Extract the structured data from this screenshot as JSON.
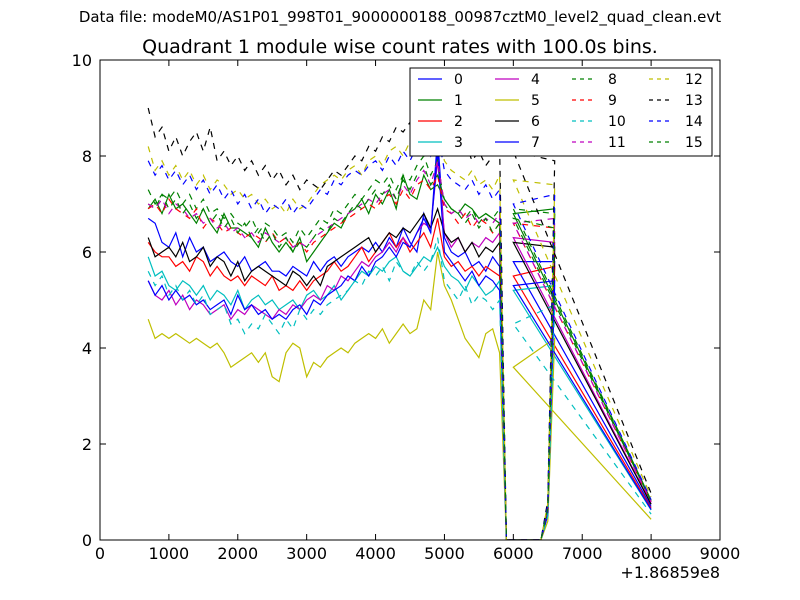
{
  "suptitle": "Data file: modeM0/AS1P01_998T01_9000000188_00987cztM0_level2_quad_clean.evt",
  "chart_data": {
    "type": "line",
    "title": "Quadrant 1 module wise count rates with 100.0s bins.",
    "xlabel": "",
    "ylabel": "",
    "x_offset_label": "+1.86859e8",
    "xlim": [
      0,
      9000
    ],
    "ylim": [
      0,
      10
    ],
    "xticks": [
      0,
      1000,
      2000,
      3000,
      4000,
      5000,
      6000,
      7000,
      8000,
      9000
    ],
    "yticks": [
      0,
      2,
      4,
      6,
      8,
      10
    ],
    "legend_position": "top-right",
    "legend_columns": 4,
    "x_start": 700,
    "x_step": 100,
    "gap_segment": {
      "x": [
        5800,
        5900,
        6000,
        6100,
        6200,
        6300,
        6400,
        6500,
        6600
      ],
      "fraction_of_level": [
        1.0,
        0.0,
        0.0,
        0.0,
        0.0,
        0.0,
        0.0,
        0.1,
        1.0
      ]
    },
    "final_point": {
      "x": 8000,
      "fraction_of_level": 0.12
    },
    "series": [
      {
        "name": "0",
        "color": "#0000ff",
        "dash": "solid",
        "values": [
          6.7,
          6.6,
          6.2,
          6.1,
          6.4,
          5.9,
          6.3,
          6.0,
          6.1,
          5.8,
          5.9,
          6.0,
          5.8,
          5.7,
          5.9,
          5.6,
          5.7,
          5.8,
          5.6,
          5.6,
          5.5,
          5.7,
          5.6,
          5.5,
          5.8,
          5.6,
          5.8,
          5.9,
          5.7,
          5.9,
          6.0,
          6.1,
          6.0,
          6.2,
          6.0,
          6.3,
          6.1,
          6.5,
          6.2,
          6.0,
          6.8,
          6.4,
          8.4,
          6.3,
          6.0,
          5.9,
          6.0,
          5.7,
          5.8,
          5.6,
          5.9,
          5.7,
          5.8,
          5.8
        ]
      },
      {
        "name": "1",
        "color": "#008000",
        "dash": "solid",
        "values": [
          6.9,
          7.1,
          6.8,
          7.2,
          6.9,
          7.0,
          6.8,
          6.6,
          6.9,
          6.6,
          6.4,
          6.8,
          6.5,
          6.5,
          6.4,
          6.3,
          6.1,
          6.5,
          6.2,
          6.0,
          6.2,
          6.0,
          6.3,
          5.8,
          6.0,
          6.2,
          6.4,
          6.6,
          6.5,
          6.8,
          6.9,
          7.1,
          6.8,
          7.2,
          7.0,
          7.3,
          6.9,
          7.6,
          7.2,
          7.1,
          7.6,
          7.3,
          7.4,
          7.1,
          6.9,
          6.8,
          7.0,
          6.9,
          6.7,
          6.8,
          6.7,
          6.6,
          6.9,
          6.8
        ]
      },
      {
        "name": "2",
        "color": "#ff0000",
        "dash": "solid",
        "values": [
          6.2,
          6.0,
          5.9,
          5.9,
          5.7,
          5.8,
          5.6,
          5.9,
          5.8,
          5.5,
          5.7,
          5.5,
          5.4,
          5.5,
          5.3,
          5.5,
          5.4,
          5.3,
          5.5,
          5.2,
          5.3,
          5.2,
          5.4,
          5.2,
          5.4,
          5.5,
          5.6,
          5.8,
          5.6,
          5.7,
          5.9,
          6.1,
          5.8,
          6.0,
          6.2,
          6.4,
          6.1,
          6.3,
          6.0,
          6.2,
          6.4,
          6.1,
          6.7,
          5.9,
          5.7,
          5.8,
          5.6,
          5.7,
          5.5,
          5.7,
          5.6,
          5.5,
          5.7,
          5.5
        ]
      },
      {
        "name": "3",
        "color": "#00bfbf",
        "dash": "solid",
        "values": [
          5.9,
          5.5,
          5.6,
          5.3,
          5.2,
          5.4,
          5.3,
          5.1,
          5.3,
          5.0,
          5.2,
          5.1,
          4.9,
          5.2,
          4.8,
          5.0,
          5.1,
          4.9,
          5.0,
          4.8,
          4.9,
          5.0,
          4.8,
          5.1,
          5.2,
          5.0,
          5.1,
          5.3,
          5.0,
          5.2,
          5.4,
          5.6,
          5.5,
          5.7,
          5.6,
          5.8,
          5.9,
          5.6,
          5.5,
          5.7,
          5.9,
          5.8,
          6.1,
          5.7,
          5.5,
          5.4,
          5.2,
          5.5,
          5.3,
          5.1,
          5.2,
          5.4,
          5.3,
          5.2
        ]
      },
      {
        "name": "4",
        "color": "#bf00bf",
        "dash": "solid",
        "values": [
          5.4,
          5.1,
          5.0,
          5.2,
          4.9,
          5.1,
          4.8,
          5.0,
          4.9,
          4.7,
          4.8,
          4.9,
          4.6,
          4.8,
          4.7,
          4.9,
          4.8,
          4.7,
          4.6,
          4.8,
          4.7,
          4.9,
          4.8,
          5.0,
          5.1,
          5.0,
          5.3,
          5.2,
          5.5,
          5.4,
          5.6,
          5.8,
          5.7,
          5.9,
          6.0,
          6.2,
          6.0,
          6.3,
          6.1,
          6.4,
          6.6,
          6.5,
          7.9,
          6.4,
          6.1,
          6.3,
          6.0,
          6.2,
          6.1,
          6.3,
          6.2,
          6.4,
          6.2,
          6.3
        ]
      },
      {
        "name": "5",
        "color": "#bfbf00",
        "dash": "solid",
        "values": [
          4.6,
          4.2,
          4.3,
          4.2,
          4.3,
          4.2,
          4.1,
          4.2,
          4.1,
          4.0,
          4.1,
          3.9,
          3.6,
          3.7,
          3.8,
          3.9,
          3.7,
          3.9,
          3.4,
          3.3,
          3.9,
          4.1,
          4.0,
          3.4,
          3.7,
          3.6,
          3.8,
          3.9,
          4.0,
          3.9,
          4.1,
          4.2,
          4.3,
          4.2,
          4.4,
          4.1,
          4.3,
          4.5,
          4.3,
          4.4,
          5.0,
          4.8,
          6.0,
          5.3,
          5.0,
          4.6,
          4.2,
          4.0,
          3.8,
          4.3,
          4.4,
          3.9,
          4.2,
          3.6
        ]
      },
      {
        "name": "6",
        "color": "#000000",
        "dash": "solid",
        "values": [
          6.3,
          5.9,
          6.0,
          6.1,
          5.9,
          6.2,
          5.8,
          5.9,
          6.1,
          5.7,
          5.9,
          5.8,
          5.5,
          5.8,
          5.4,
          5.6,
          5.7,
          5.6,
          5.5,
          5.4,
          5.3,
          5.6,
          5.5,
          5.3,
          5.5,
          5.3,
          5.7,
          5.8,
          5.9,
          6.0,
          6.1,
          6.2,
          6.3,
          6.0,
          6.2,
          6.4,
          6.3,
          6.5,
          6.4,
          6.6,
          6.8,
          6.5,
          6.9,
          6.4,
          6.2,
          6.3,
          6.0,
          6.2,
          5.9,
          6.1,
          6.0,
          6.2,
          6.1,
          6.2
        ]
      },
      {
        "name": "7",
        "color": "#0000ff",
        "dash": "solid",
        "values": [
          5.4,
          5.1,
          5.3,
          5.0,
          5.2,
          5.0,
          5.1,
          4.9,
          5.0,
          4.8,
          4.9,
          5.0,
          4.7,
          5.1,
          4.8,
          4.9,
          4.7,
          4.8,
          4.6,
          4.7,
          4.6,
          4.8,
          4.9,
          4.7,
          5.0,
          4.9,
          5.1,
          5.2,
          5.3,
          5.5,
          5.4,
          5.7,
          5.5,
          5.8,
          5.9,
          6.1,
          5.9,
          6.2,
          6.1,
          6.4,
          6.7,
          6.4,
          8.1,
          6.0,
          5.8,
          5.6,
          5.4,
          5.6,
          5.3,
          5.5,
          5.4,
          5.2,
          5.4,
          5.3
        ]
      },
      {
        "name": "8",
        "color": "#008000",
        "dash": "dashed",
        "values": [
          7.0,
          6.9,
          7.2,
          7.1,
          7.3,
          7.0,
          7.2,
          6.9,
          7.1,
          6.8,
          6.9,
          6.7,
          6.8,
          6.6,
          6.5,
          6.7,
          6.4,
          6.6,
          6.5,
          6.3,
          6.4,
          6.2,
          6.5,
          6.3,
          6.5,
          6.7,
          6.6,
          6.9,
          6.8,
          7.0,
          7.2,
          7.1,
          7.3,
          7.5,
          7.4,
          7.6,
          7.3,
          7.6,
          7.5,
          7.8,
          8.0,
          7.6,
          7.9,
          7.0,
          6.8,
          6.9,
          6.7,
          6.9,
          6.6,
          6.8,
          6.7,
          6.9,
          6.8,
          6.9
        ]
      },
      {
        "name": "9",
        "color": "#ff0000",
        "dash": "dashed",
        "values": [
          6.9,
          7.0,
          6.8,
          7.1,
          6.9,
          6.8,
          6.7,
          6.9,
          6.5,
          6.7,
          6.6,
          6.4,
          6.5,
          6.4,
          6.3,
          6.4,
          6.3,
          6.2,
          6.4,
          6.2,
          6.3,
          6.1,
          6.2,
          6.0,
          6.2,
          6.3,
          6.4,
          6.5,
          6.6,
          6.7,
          6.8,
          6.9,
          7.0,
          6.9,
          7.1,
          7.2,
          7.0,
          7.3,
          7.1,
          7.4,
          7.5,
          7.3,
          7.6,
          6.9,
          6.8,
          6.6,
          6.8,
          6.5,
          6.7,
          6.6,
          6.4,
          6.6,
          6.5,
          6.6
        ]
      },
      {
        "name": "10",
        "color": "#00bfbf",
        "dash": "dashed",
        "values": [
          5.6,
          5.3,
          5.5,
          5.1,
          5.3,
          5.0,
          5.2,
          4.9,
          5.1,
          4.7,
          4.8,
          4.9,
          4.5,
          4.6,
          4.3,
          4.5,
          4.4,
          4.7,
          4.5,
          4.3,
          4.6,
          4.4,
          4.8,
          4.6,
          4.8,
          4.7,
          4.9,
          5.0,
          5.1,
          5.2,
          5.4,
          5.3,
          5.6,
          5.5,
          5.7,
          5.4,
          5.8,
          5.6,
          5.5,
          5.8,
          5.6,
          5.8,
          6.3,
          5.4,
          5.2,
          5.0,
          5.3,
          4.9,
          5.1,
          5.0,
          4.8,
          5.0,
          4.9,
          4.5
        ]
      },
      {
        "name": "11",
        "color": "#bf00bf",
        "dash": "dashed",
        "values": [
          7.0,
          6.9,
          7.1,
          6.8,
          7.0,
          6.9,
          6.7,
          6.8,
          6.6,
          6.7,
          6.5,
          6.6,
          6.4,
          6.5,
          6.3,
          6.4,
          6.2,
          6.4,
          6.3,
          6.2,
          6.3,
          6.1,
          6.2,
          6.1,
          6.3,
          6.4,
          6.5,
          6.6,
          6.7,
          6.8,
          6.9,
          7.0,
          7.1,
          7.0,
          7.2,
          7.3,
          7.1,
          7.4,
          7.2,
          7.5,
          7.7,
          7.4,
          7.9,
          7.0,
          6.8,
          6.9,
          6.7,
          6.8,
          6.6,
          6.7,
          6.6,
          6.8,
          6.7,
          6.6
        ]
      },
      {
        "name": "12",
        "color": "#bfbf00",
        "dash": "dashed",
        "values": [
          8.2,
          7.7,
          7.9,
          7.6,
          7.8,
          7.5,
          7.7,
          7.4,
          7.6,
          7.3,
          7.5,
          7.4,
          7.2,
          7.3,
          7.1,
          7.2,
          7.0,
          7.1,
          6.9,
          7.0,
          6.8,
          7.1,
          6.9,
          7.0,
          7.2,
          7.4,
          7.5,
          7.6,
          7.5,
          7.7,
          7.8,
          7.6,
          7.9,
          8.0,
          7.8,
          8.1,
          8.2,
          8.0,
          8.3,
          8.4,
          8.5,
          8.2,
          8.6,
          7.9,
          7.7,
          7.6,
          7.5,
          7.7,
          7.4,
          7.5,
          7.3,
          7.6,
          7.4,
          7.5
        ]
      },
      {
        "name": "13",
        "color": "#000000",
        "dash": "dashed",
        "values": [
          9.0,
          8.4,
          8.6,
          8.1,
          8.4,
          8.0,
          8.3,
          8.5,
          8.1,
          8.6,
          7.9,
          8.1,
          7.8,
          8.0,
          7.7,
          7.9,
          7.6,
          7.8,
          7.5,
          7.7,
          7.4,
          7.6,
          7.3,
          7.5,
          7.4,
          7.3,
          7.5,
          7.7,
          7.6,
          7.8,
          8.0,
          7.9,
          8.2,
          8.1,
          8.4,
          8.3,
          8.6,
          8.5,
          8.7,
          9.0,
          9.1,
          9.0,
          9.4,
          8.4,
          8.2,
          8.0,
          8.3,
          7.9,
          8.1,
          7.8,
          8.0,
          8.2,
          7.9,
          8.1
        ]
      },
      {
        "name": "14",
        "color": "#0000ff",
        "dash": "dashed",
        "values": [
          7.9,
          7.6,
          7.8,
          7.5,
          7.7,
          7.4,
          7.6,
          7.3,
          7.5,
          7.2,
          7.4,
          7.1,
          7.3,
          7.0,
          7.2,
          6.9,
          7.1,
          6.8,
          7.0,
          6.9,
          7.1,
          6.8,
          7.0,
          6.9,
          7.1,
          7.3,
          7.2,
          7.5,
          7.4,
          7.6,
          7.7,
          7.6,
          7.8,
          7.9,
          7.7,
          8.0,
          7.8,
          8.1,
          7.9,
          8.2,
          8.3,
          8.0,
          8.5,
          7.7,
          7.5,
          7.4,
          7.3,
          7.5,
          7.2,
          7.4,
          7.1,
          7.3,
          7.2,
          7.0
        ]
      },
      {
        "name": "15",
        "color": "#008000",
        "dash": "dashed",
        "values": [
          7.3,
          7.0,
          7.2,
          6.9,
          7.1,
          6.8,
          7.0,
          6.7,
          6.9,
          6.6,
          6.8,
          6.5,
          6.7,
          6.4,
          6.6,
          6.3,
          6.5,
          6.2,
          6.4,
          6.1,
          6.3,
          6.0,
          6.2,
          6.1,
          6.3,
          6.5,
          6.4,
          6.7,
          6.6,
          6.8,
          7.0,
          6.9,
          7.1,
          7.3,
          7.2,
          7.4,
          7.1,
          7.5,
          7.3,
          7.6,
          7.8,
          7.4,
          7.6,
          7.1,
          6.9,
          6.8,
          6.6,
          6.8,
          6.5,
          6.7,
          6.4,
          6.6,
          6.5,
          6.7
        ]
      }
    ]
  }
}
